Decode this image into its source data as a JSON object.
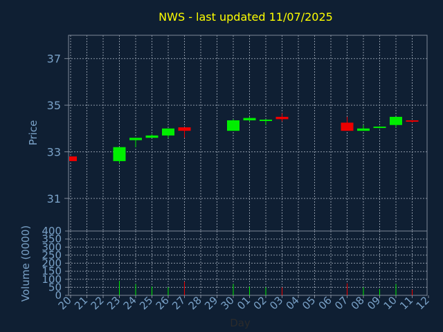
{
  "chart_data": {
    "type": "candlestick",
    "title": "NWS - last updated 11/07/2025",
    "price_ylabel": "Price",
    "volume_ylabel": "Volume (0000)",
    "xlabel": "Day",
    "price_ylim": [
      29.6,
      38.0
    ],
    "price_ticks": [
      "31",
      "33",
      "35",
      "37"
    ],
    "volume_ylim": [
      0,
      400
    ],
    "volume_ticks": [
      "0",
      "50",
      "100",
      "150",
      "200",
      "250",
      "300",
      "350",
      "400"
    ],
    "x_tick_labels": [
      "20",
      "21",
      "22",
      "23",
      "24",
      "25",
      "26",
      "27",
      "28",
      "29",
      "30",
      "01",
      "02",
      "03",
      "04",
      "05",
      "06",
      "07",
      "08",
      "09",
      "10",
      "11",
      "12"
    ],
    "grid": true,
    "colors": {
      "background": "#0f1f33",
      "grid": "#8c97a6",
      "axis": "#7f8a99",
      "label": "#7aa2c8",
      "title": "#ffff00",
      "up": "#00ee00",
      "down": "#ee0000"
    },
    "candles": [
      {
        "day": "20",
        "open": 32.8,
        "high": 32.8,
        "low": 32.6,
        "close": 32.6
      },
      {
        "day": "23",
        "open": 32.6,
        "high": 33.2,
        "low": 32.5,
        "close": 33.2
      },
      {
        "day": "24",
        "open": 33.5,
        "high": 33.6,
        "low": 33.2,
        "close": 33.6
      },
      {
        "day": "25",
        "open": 33.6,
        "high": 33.75,
        "low": 33.6,
        "close": 33.7
      },
      {
        "day": "26",
        "open": 33.7,
        "high": 34.0,
        "low": 33.6,
        "close": 34.0
      },
      {
        "day": "27",
        "open": 34.05,
        "high": 34.05,
        "low": 33.6,
        "close": 33.9
      },
      {
        "day": "30",
        "open": 33.9,
        "high": 34.4,
        "low": 33.9,
        "close": 34.35
      },
      {
        "day": "01",
        "open": 34.35,
        "high": 34.5,
        "low": 34.3,
        "close": 34.45
      },
      {
        "day": "02",
        "open": 34.35,
        "high": 34.4,
        "low": 34.15,
        "close": 34.38
      },
      {
        "day": "03",
        "open": 34.5,
        "high": 34.65,
        "low": 34.3,
        "close": 34.4
      },
      {
        "day": "07",
        "open": 34.25,
        "high": 34.5,
        "low": 33.9,
        "close": 33.9
      },
      {
        "day": "08",
        "open": 33.9,
        "high": 34.15,
        "low": 33.9,
        "close": 34.0
      },
      {
        "day": "09",
        "open": 34.05,
        "high": 34.1,
        "low": 34.0,
        "close": 34.08
      },
      {
        "day": "10",
        "open": 34.15,
        "high": 34.5,
        "low": 34.05,
        "close": 34.5
      },
      {
        "day": "11",
        "open": 34.35,
        "high": 34.35,
        "low": 34.25,
        "close": 34.3
      }
    ],
    "volume": [
      {
        "day": "20",
        "value": 0
      },
      {
        "day": "23",
        "value": 90
      },
      {
        "day": "24",
        "value": 70
      },
      {
        "day": "25",
        "value": 55
      },
      {
        "day": "26",
        "value": 50
      },
      {
        "day": "27",
        "value": 85
      },
      {
        "day": "30",
        "value": 70
      },
      {
        "day": "01",
        "value": 55
      },
      {
        "day": "02",
        "value": 50
      },
      {
        "day": "03",
        "value": 50
      },
      {
        "day": "07",
        "value": 75
      },
      {
        "day": "08",
        "value": 50
      },
      {
        "day": "09",
        "value": 40
      },
      {
        "day": "10",
        "value": 70
      },
      {
        "day": "11",
        "value": 35
      }
    ]
  }
}
